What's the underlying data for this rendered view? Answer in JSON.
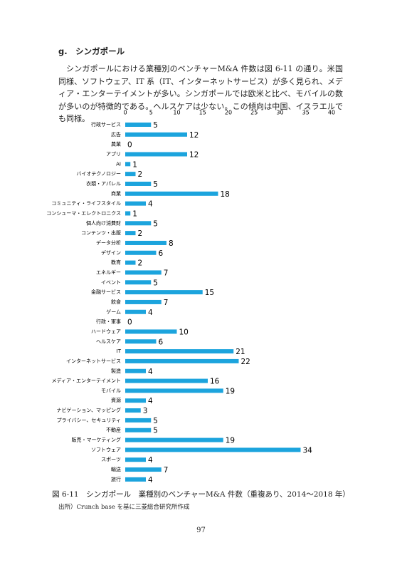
{
  "heading": "g.　シンガポール",
  "body": "シンガポールにおける業種別のベンチャーM&A 件数は図 6-11 の通り。米国同様、ソフトウェア、IT 系（IT、インターネットサービス）が多く見られ、メディア・エンターテイメントが多い。シンガポールでは欧米と比べ、モバイルの数が多いのが特徴的である。ヘルスケアは少ない。この傾向は中国、イスラエルでも同様。",
  "chart_data": {
    "type": "bar",
    "orientation": "horizontal",
    "color": "#1ca4dd",
    "categories": [
      "行政サービス",
      "広告",
      "農業",
      "アプリ",
      "AI",
      "バイオテクノロジー",
      "衣類・アパレル",
      "商業",
      "コミュニティ・ライフスタイル",
      "コンシューマ・エレクトロニクス",
      "個人向け消費財",
      "コンテンツ・出版",
      "データ分析",
      "デザイン",
      "教育",
      "エネルギー",
      "イベント",
      "金融サービス",
      "飲食",
      "ゲーム",
      "行政・軍事",
      "ハードウェア",
      "ヘルスケア",
      "IT",
      "インターネットサービス",
      "製造",
      "メディア・エンターテイメント",
      "モバイル",
      "資源",
      "ナビゲーション、マッピング",
      "プライバシー、セキュリティ",
      "不動産",
      "販売・マーケティング",
      "ソフトウェア",
      "スポーツ",
      "輸送",
      "旅行"
    ],
    "values": [
      5,
      12,
      0,
      12,
      1,
      2,
      5,
      18,
      4,
      1,
      5,
      2,
      8,
      6,
      2,
      7,
      5,
      15,
      7,
      4,
      0,
      10,
      6,
      21,
      22,
      4,
      16,
      19,
      4,
      3,
      5,
      5,
      19,
      34,
      4,
      7,
      4
    ],
    "xlim": [
      0,
      40
    ],
    "xticks": [
      0,
      5,
      10,
      15,
      20,
      25,
      30,
      35,
      40
    ]
  },
  "caption": "図 6-11　シンガポール　業種別のベンチャーM&A 件数（重複あり、2014～2018 年）",
  "source": "出所）Crunch base を基に三菱総合研究所作成",
  "page_number": "97"
}
